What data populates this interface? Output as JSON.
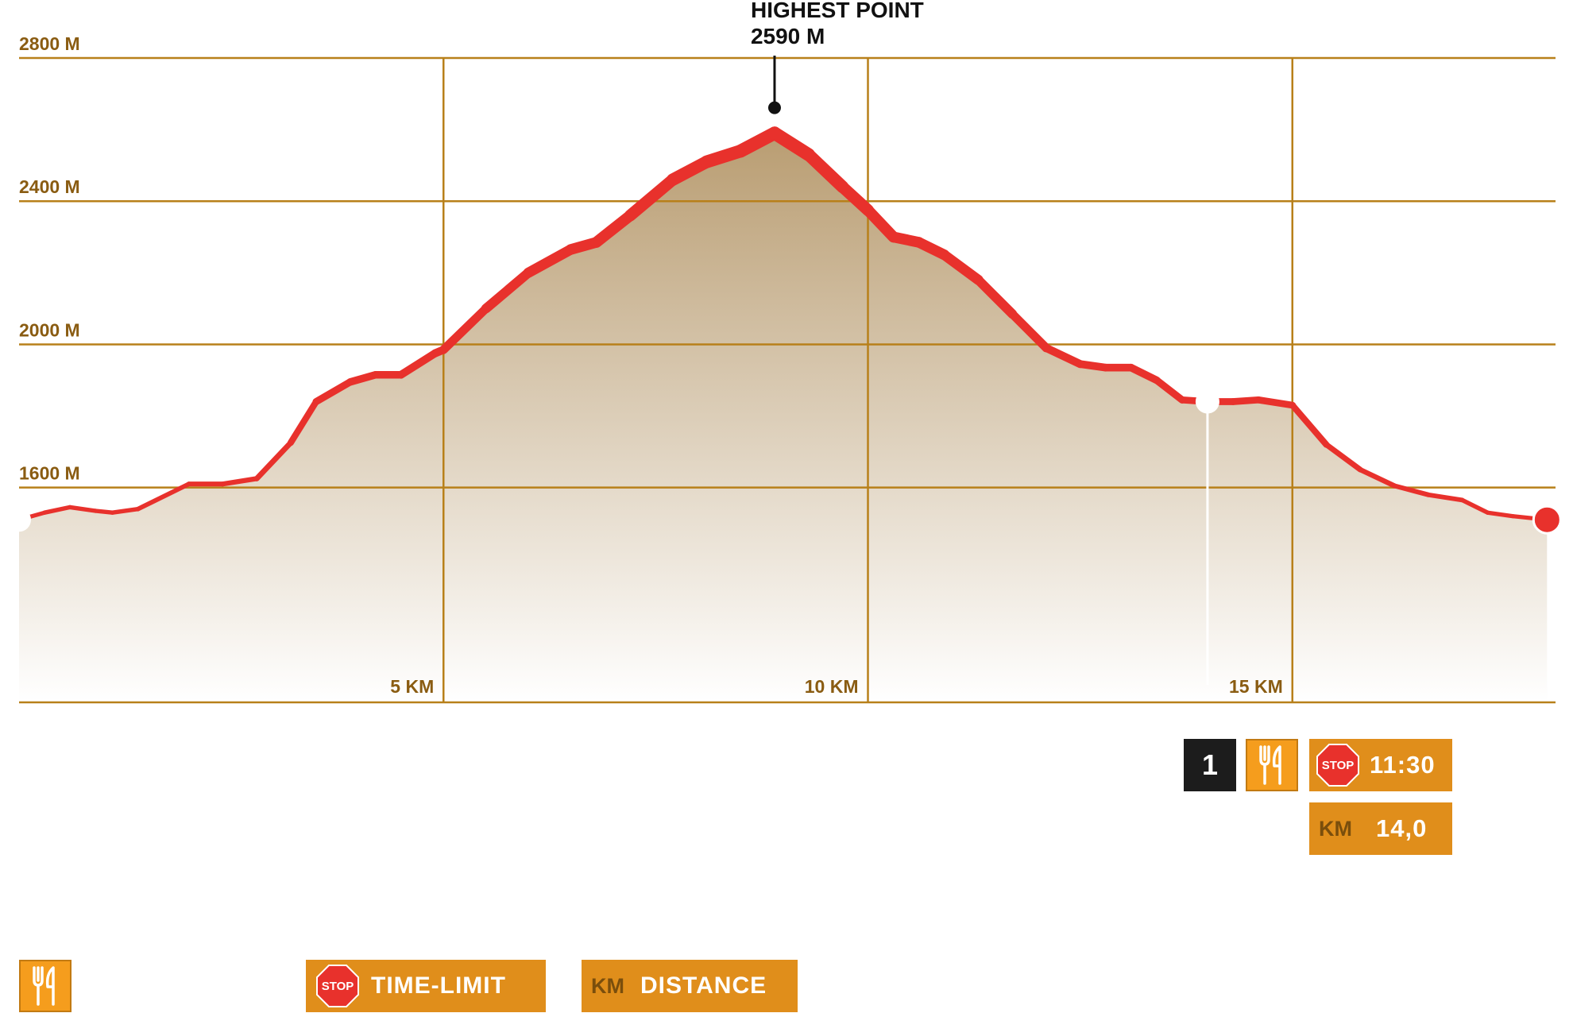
{
  "chart_data": {
    "type": "area",
    "title": "",
    "xlabel": "",
    "ylabel": "",
    "x_unit": "KM",
    "y_unit": "M",
    "xlim": [
      0,
      18.1
    ],
    "ylim": [
      1000,
      2800
    ],
    "y_ticks": [
      {
        "value": 2800,
        "label": "2800 M"
      },
      {
        "value": 2400,
        "label": "2400 M"
      },
      {
        "value": 2000,
        "label": "2000 M"
      },
      {
        "value": 1600,
        "label": "1600 M"
      }
    ],
    "x_ticks": [
      {
        "value": 5,
        "label": "5 KM"
      },
      {
        "value": 10,
        "label": "10 KM"
      },
      {
        "value": 15,
        "label": "15 KM"
      }
    ],
    "grid": true,
    "series": [
      {
        "x": [
          0,
          0.3,
          0.6,
          0.9,
          1.1,
          1.4,
          2.0,
          2.4,
          2.8,
          3.2,
          3.5,
          3.9,
          4.2,
          4.5,
          4.9,
          5.0,
          5.5,
          6.0,
          6.5,
          6.8,
          7.2,
          7.7,
          8.1,
          8.5,
          8.9,
          9.3,
          9.7,
          10.0,
          10.3,
          10.6,
          10.9,
          11.3,
          11.7,
          12.1,
          12.5,
          12.8,
          13.1,
          13.4,
          13.7,
          14.0,
          14.3,
          14.6,
          15.0,
          15.4,
          15.8,
          16.2,
          16.6,
          17.0,
          17.3,
          17.6,
          18.0
        ],
        "y": [
          1510,
          1530,
          1545,
          1535,
          1530,
          1540,
          1610,
          1610,
          1625,
          1725,
          1840,
          1895,
          1915,
          1915,
          1975,
          1985,
          2100,
          2200,
          2265,
          2285,
          2360,
          2460,
          2510,
          2540,
          2590,
          2530,
          2440,
          2375,
          2300,
          2285,
          2250,
          2180,
          2085,
          1990,
          1945,
          1935,
          1935,
          1900,
          1845,
          1840,
          1840,
          1845,
          1830,
          1720,
          1650,
          1605,
          1580,
          1565,
          1530,
          1520,
          1510
        ]
      }
    ],
    "annotations": [
      {
        "text": "HIGHEST POINT",
        "x": 8.9,
        "y": 2590
      },
      {
        "text": "2590 M",
        "x": 8.9,
        "y": 2590
      }
    ],
    "markers": [
      {
        "x": 0,
        "y": 1510,
        "type": "start",
        "color": "#ffffff"
      },
      {
        "x": 14.0,
        "y": 1840,
        "type": "checkpoint",
        "color": "#ffffff"
      },
      {
        "x": 18.0,
        "y": 1510,
        "type": "finish",
        "color": "#e8312c"
      }
    ]
  },
  "colors": {
    "grid": "#b8801a",
    "axis_label": "#8a5c12",
    "profile_line": "#e8312c",
    "fill_top": "#b99d72",
    "fill_bottom": "#ffffff",
    "orange": "#e08e1b",
    "dark": "#1c1c1c",
    "stop_red": "#e8312c"
  },
  "checkpoint": {
    "number": "1",
    "food_icon": "fork-knife-icon",
    "stop_text": "STOP",
    "time_limit": "11:30",
    "km_label": "KM",
    "km_value": "14,0"
  },
  "legend": {
    "food_icon": "fork-knife-icon",
    "stop_text": "STOP",
    "time_limit_label": "TIME-LIMIT",
    "km_label": "KM",
    "distance_label": "DISTANCE"
  }
}
